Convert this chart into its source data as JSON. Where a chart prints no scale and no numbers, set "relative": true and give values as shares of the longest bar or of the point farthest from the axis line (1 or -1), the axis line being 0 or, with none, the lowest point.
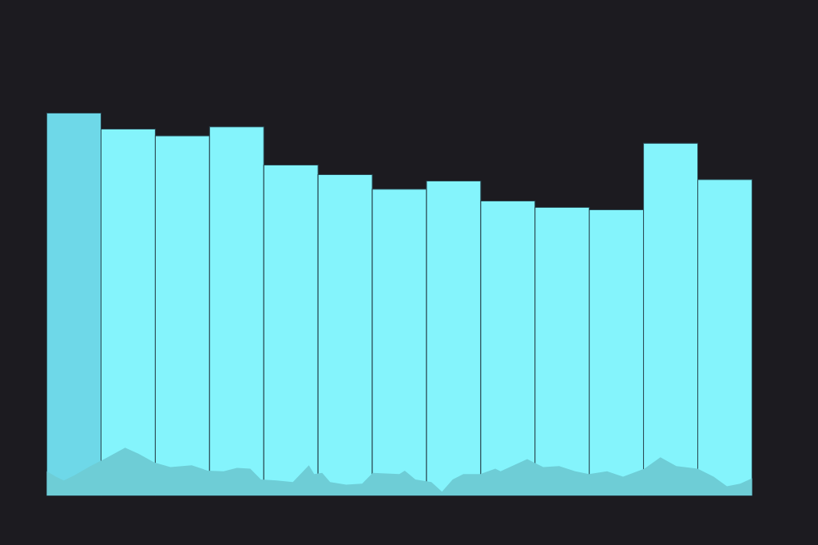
{
  "chart_data": {
    "type": "bar",
    "relative": true,
    "categories": [
      null,
      null,
      null,
      null,
      null,
      null,
      null,
      null,
      null,
      null,
      null,
      null,
      null
    ],
    "values": [
      1,
      0.958,
      0.94,
      0.964,
      0.864,
      0.839,
      0.801,
      0.822,
      0.77,
      0.753,
      0.747,
      0.921,
      0.826
    ],
    "colors": [
      "#6ed8e8",
      "#84f4fc",
      "#84f4fc",
      "#84f4fc",
      "#84f4fc",
      "#84f4fc",
      "#84f4fc",
      "#84f4fc",
      "#84f4fc",
      "#84f4fc",
      "#84f4fc",
      "#84f4fc",
      "#84f4fc"
    ]
  }
}
